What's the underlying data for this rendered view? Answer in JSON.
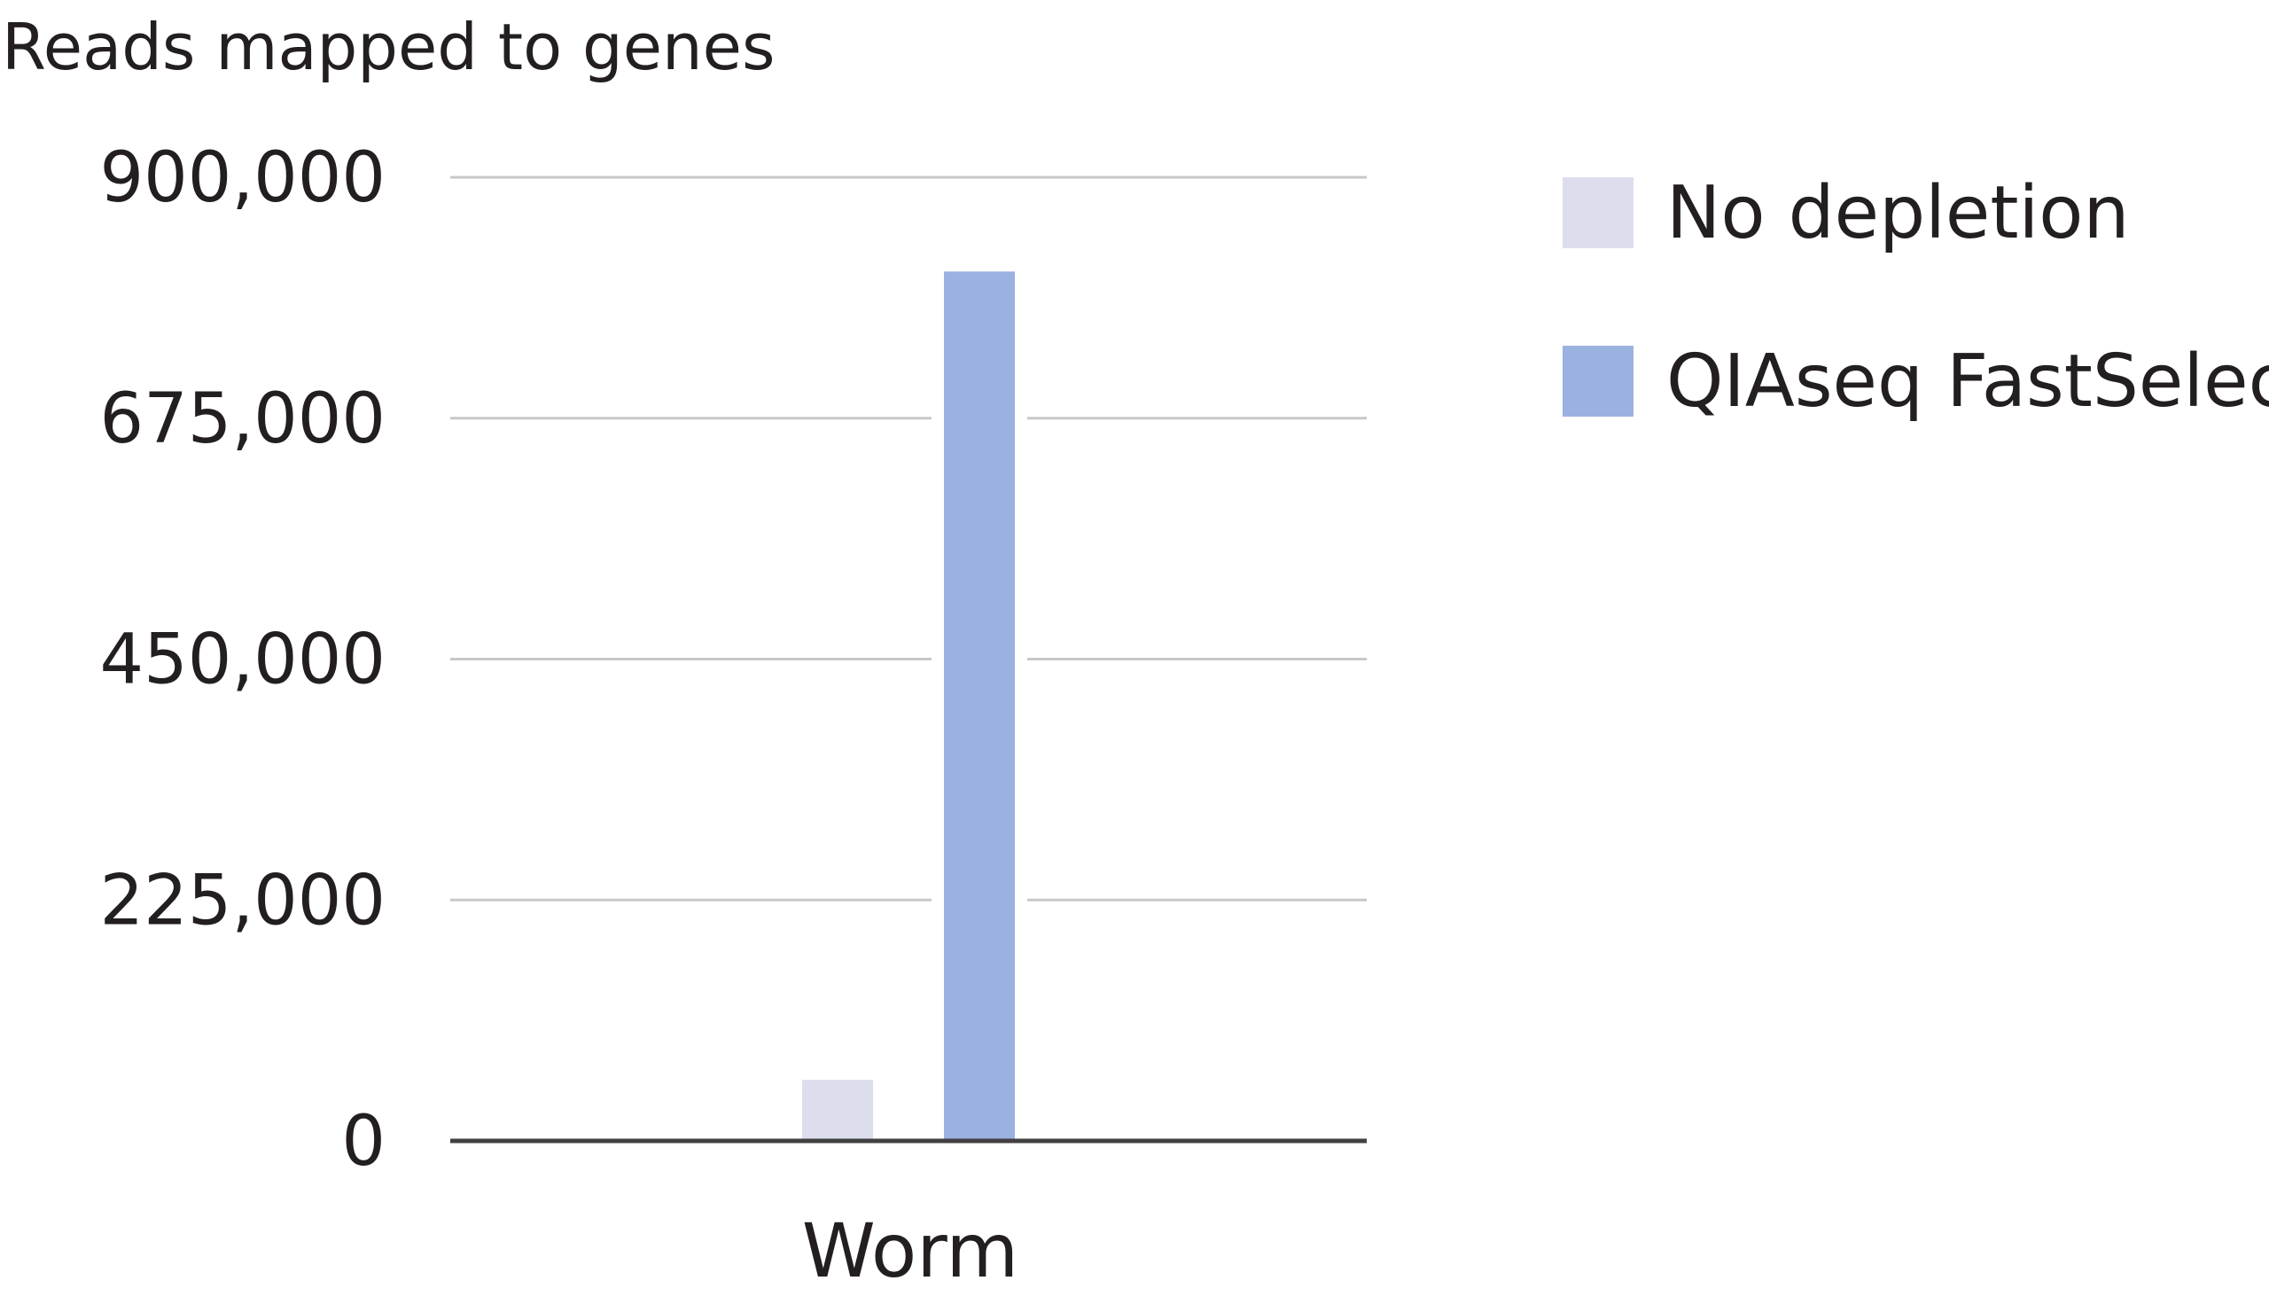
{
  "chart_data": {
    "type": "bar",
    "title": "",
    "ylabel": "Reads mapped to genes",
    "xlabel": "",
    "categories": [
      "Worm"
    ],
    "series": [
      {
        "name": "No depletion",
        "values": [
          57000
        ],
        "color": "#dcdeee"
      },
      {
        "name": "QIAseq FastSelect",
        "values": [
          812000
        ],
        "color": "#9bb1df"
      }
    ],
    "ylim": [
      0,
      900000
    ],
    "yticks": [
      0,
      225000,
      450000,
      675000,
      900000
    ],
    "ytick_labels": [
      "0",
      "225,000",
      "450,000",
      "675,000",
      "900,000"
    ],
    "grid": true,
    "legend_position": "right"
  }
}
